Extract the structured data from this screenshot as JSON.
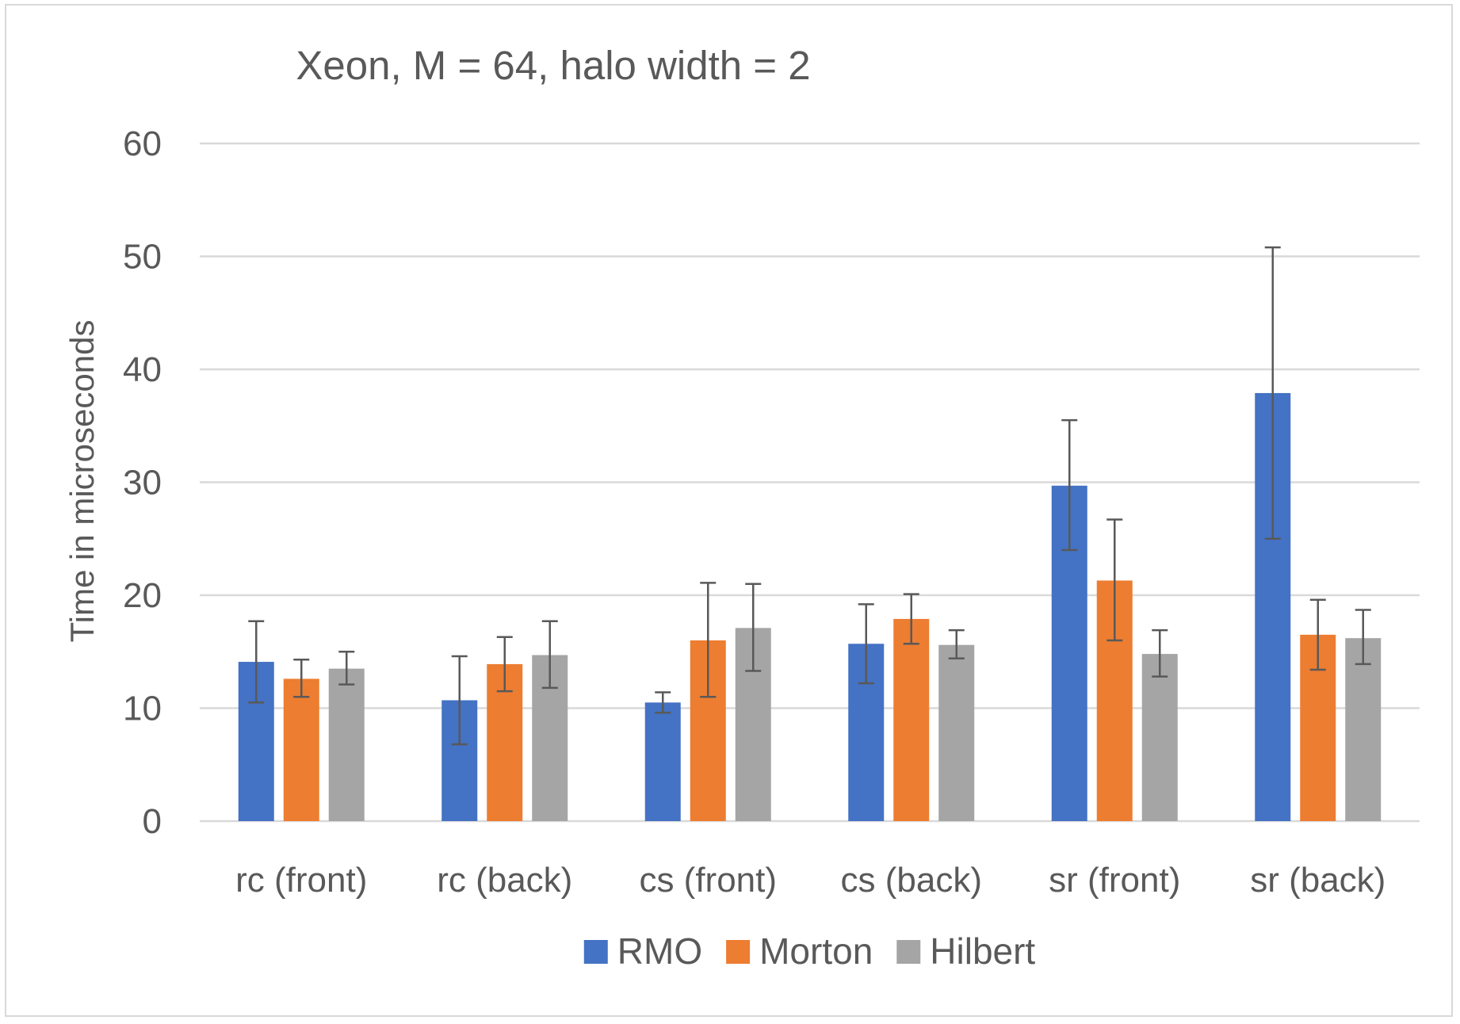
{
  "chart_data": {
    "type": "bar",
    "title": "Xeon, M = 64, halo width = 2",
    "ylabel": "Time in microseconds",
    "xlabel": "",
    "ylim": [
      0,
      60
    ],
    "yticks": [
      0,
      10,
      20,
      30,
      40,
      50,
      60
    ],
    "grid": true,
    "legend_position": "bottom",
    "categories": [
      "rc (front)",
      "rc (back)",
      "cs (front)",
      "cs (back)",
      "sr (front)",
      "sr (back)"
    ],
    "series": [
      {
        "name": "RMO",
        "color": "#4472c4",
        "values": [
          14.1,
          10.7,
          10.5,
          15.7,
          29.7,
          37.9
        ],
        "error_low": [
          10.5,
          6.8,
          9.6,
          12.2,
          24.0,
          25.0
        ],
        "error_high": [
          17.7,
          14.6,
          11.4,
          19.2,
          35.5,
          50.8
        ]
      },
      {
        "name": "Morton",
        "color": "#ed7d31",
        "values": [
          12.6,
          13.9,
          16.0,
          17.9,
          21.3,
          16.5
        ],
        "error_low": [
          11.0,
          11.5,
          11.0,
          15.7,
          16.0,
          13.4
        ],
        "error_high": [
          14.3,
          16.3,
          21.1,
          20.1,
          26.7,
          19.6
        ]
      },
      {
        "name": "Hilbert",
        "color": "#a5a5a5",
        "values": [
          13.5,
          14.7,
          17.1,
          15.6,
          14.8,
          16.2
        ],
        "error_low": [
          12.1,
          11.8,
          13.3,
          14.4,
          12.8,
          13.9
        ],
        "error_high": [
          15.0,
          17.7,
          21.0,
          16.9,
          16.9,
          18.7
        ]
      }
    ]
  }
}
